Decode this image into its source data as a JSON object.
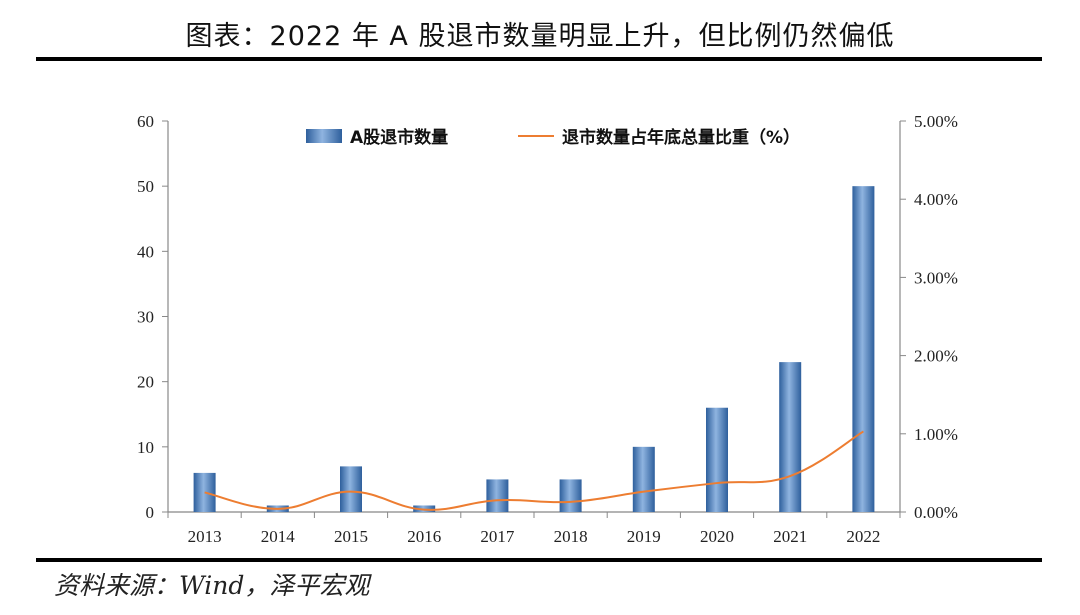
{
  "title": "图表：2022 年 A 股退市数量明显上升，但比例仍然偏低",
  "source": "资料来源：Wind，泽平宏观",
  "colors": {
    "bar": "#3f77b8",
    "line": "#ed7d31",
    "axis": "#888888"
  },
  "chart_data": {
    "type": "bar",
    "categories": [
      "2013",
      "2014",
      "2015",
      "2016",
      "2017",
      "2018",
      "2019",
      "2020",
      "2021",
      "2022"
    ],
    "series": [
      {
        "name": "A股退市数量",
        "type": "bar",
        "axis": "left",
        "values": [
          6,
          1,
          7,
          1,
          5,
          5,
          10,
          16,
          23,
          50
        ]
      },
      {
        "name": "退市数量占年底总量比重（%）",
        "type": "line",
        "axis": "right",
        "values": [
          0.25,
          0.04,
          0.26,
          0.03,
          0.15,
          0.13,
          0.26,
          0.37,
          0.46,
          1.03
        ]
      }
    ],
    "y_left": {
      "min": 0,
      "max": 60,
      "ticks": [
        "0",
        "10",
        "20",
        "30",
        "40",
        "50",
        "60"
      ]
    },
    "y_right": {
      "min": 0,
      "max": 5,
      "ticks": [
        "0.00%",
        "1.00%",
        "2.00%",
        "3.00%",
        "4.00%",
        "5.00%"
      ]
    },
    "legend_position": "top",
    "grid": false
  }
}
